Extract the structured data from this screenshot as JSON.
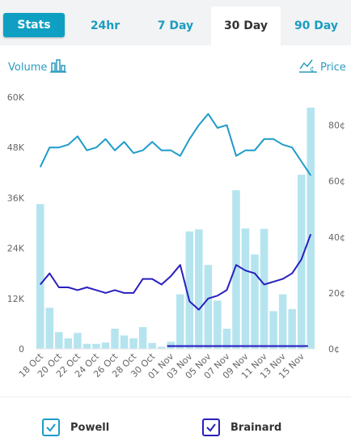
{
  "tabs": [
    {
      "label": "Stats"
    },
    {
      "label": "24hr"
    },
    {
      "label": "7 Day"
    },
    {
      "label": "30 Day"
    },
    {
      "label": "90 Day"
    }
  ],
  "axis_titles": {
    "volume": "Volume",
    "price": "Price"
  },
  "icons": {
    "volume": "bar-chart-icon",
    "price": "line-chart-cent-icon"
  },
  "colors": {
    "powell": "#1e9cc9",
    "brainard": "#2a1fbf",
    "volume_bars": "#b5e4ef",
    "tab_accent": "#0f9fc3"
  },
  "chart_data": {
    "type": "bar+line",
    "x": [
      "18 Oct",
      "19 Oct",
      "20 Oct",
      "21 Oct",
      "22 Oct",
      "23 Oct",
      "24 Oct",
      "25 Oct",
      "26 Oct",
      "27 Oct",
      "28 Oct",
      "29 Oct",
      "30 Oct",
      "31 Oct",
      "01 Nov",
      "02 Nov",
      "03 Nov",
      "04 Nov",
      "05 Nov",
      "06 Nov",
      "07 Nov",
      "08 Nov",
      "09 Nov",
      "10 Nov",
      "11 Nov",
      "12 Nov",
      "13 Nov",
      "14 Nov",
      "15 Nov",
      "16 Nov"
    ],
    "x_tick_labels": [
      "18 Oct",
      "20 Oct",
      "22 Oct",
      "24 Oct",
      "26 Oct",
      "28 Oct",
      "30 Oct",
      "01 Nov",
      "03 Nov",
      "05 Nov",
      "07 Nov",
      "09 Nov",
      "11 Nov",
      "13 Nov",
      "15 Nov"
    ],
    "volume": {
      "axis": "left",
      "ylim": [
        0,
        60000
      ],
      "ticks": [
        "0",
        "12K",
        "24K",
        "36K",
        "48K",
        "60K"
      ],
      "values": [
        34500,
        9800,
        4000,
        2500,
        3800,
        1200,
        1200,
        1500,
        4800,
        3200,
        2500,
        5200,
        1400,
        500,
        1700,
        13000,
        28000,
        28500,
        20000,
        11500,
        4800,
        37800,
        28700,
        22500,
        28600,
        9000,
        13000,
        9500,
        41500,
        57500
      ]
    },
    "price": {
      "axis": "right",
      "ylim": [
        0,
        90
      ],
      "ticks": [
        "0¢",
        "20¢",
        "40¢",
        "60¢",
        "80¢"
      ],
      "series": [
        {
          "name": "Powell",
          "values": [
            65,
            72,
            72,
            73,
            76,
            71,
            72,
            75,
            71,
            74,
            70,
            71,
            74,
            71,
            71,
            69,
            75,
            80,
            84,
            79,
            80,
            69,
            71,
            71,
            75,
            75,
            73,
            72,
            67,
            62
          ]
        },
        {
          "name": "Brainard",
          "values": [
            23,
            27,
            22,
            22,
            21,
            22,
            21,
            20,
            21,
            20,
            20,
            25,
            25,
            23,
            26,
            30,
            17,
            14,
            18,
            19,
            21,
            30,
            28,
            27,
            23,
            24,
            25,
            27,
            32,
            41
          ]
        }
      ]
    },
    "baseline_line": {
      "from": "01 Nov",
      "to": "16 Nov",
      "value": 1
    }
  }
}
